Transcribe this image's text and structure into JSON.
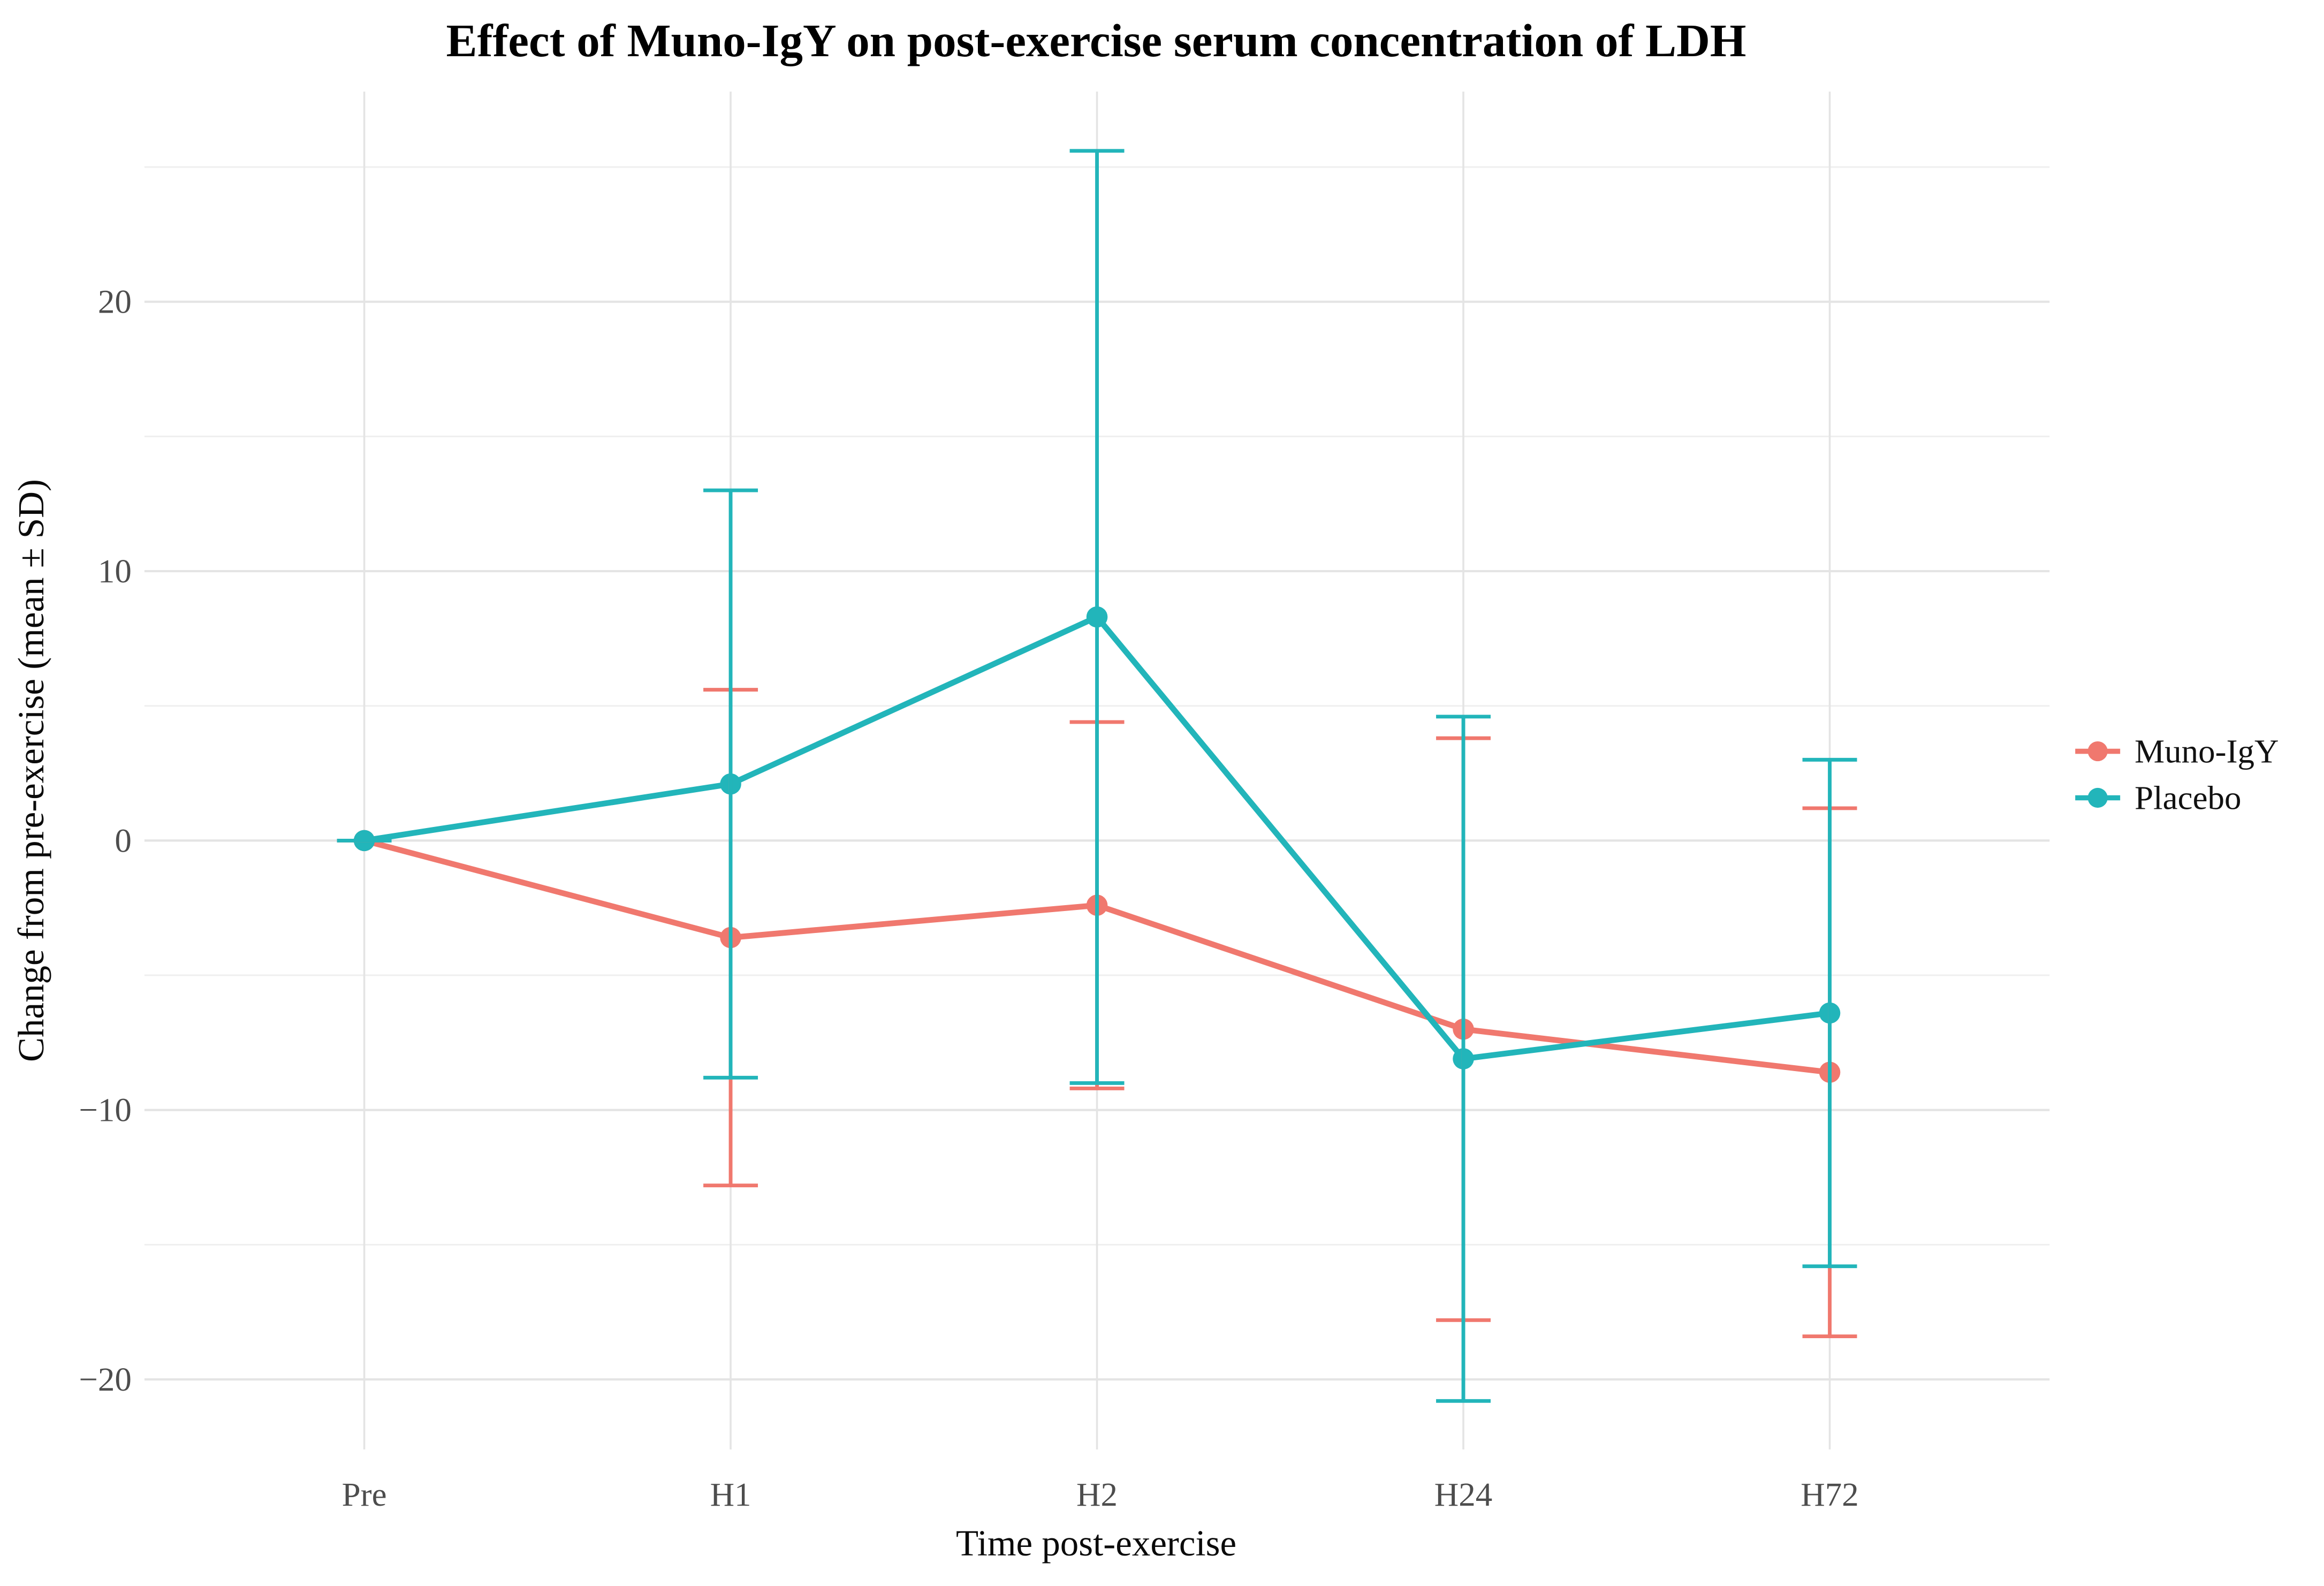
{
  "title": "Effect of Muno-IgY on post-exercise serum concentration of LDH",
  "axes": {
    "x_label": "Time post-exercise",
    "y_label": "Change from pre-exercise (mean ± SD)"
  },
  "legend": {
    "position": "right",
    "items": [
      {
        "label": "Muno-IgY",
        "color": "#F0786E",
        "marker": "point-with-line"
      },
      {
        "label": "Placebo",
        "color": "#22B5BA",
        "marker": "point-with-line"
      }
    ]
  },
  "chart_data": {
    "type": "line",
    "title": "Effect of Muno-IgY on post-exercise serum concentration of LDH",
    "xlabel": "Time post-exercise",
    "ylabel": "Change from pre-exercise (mean ± SD)",
    "categories": [
      "Pre",
      "H1",
      "H2",
      "H24",
      "H72"
    ],
    "series": [
      {
        "name": "Muno-IgY",
        "color": "#F0786E",
        "means": [
          0,
          -3.6,
          -2.4,
          -7.0,
          -8.6
        ],
        "sd": [
          0,
          9.2,
          6.8,
          10.8,
          9.8
        ]
      },
      {
        "name": "Placebo",
        "color": "#22B5BA",
        "means": [
          0,
          2.1,
          8.3,
          -8.1,
          -6.4
        ],
        "sd": [
          0,
          10.9,
          17.3,
          12.7,
          9.4
        ]
      }
    ],
    "error_bars": "mean ± SD, capped",
    "y_ticks": [
      -20,
      -10,
      0,
      10,
      20
    ],
    "y_minor_ticks": [
      -15,
      -5,
      5,
      15,
      25
    ],
    "ylim": [
      -22.6,
      27.8
    ],
    "grid": {
      "horizontal": "major every 10, minor every 5",
      "vertical": "at each category",
      "background": "white"
    },
    "legend_position": "right-center"
  },
  "colors": {
    "grid_major": "#e4e4e4",
    "grid_minor": "#efefef",
    "axis_text": "#4d4d4d",
    "title_text": "#000000"
  }
}
